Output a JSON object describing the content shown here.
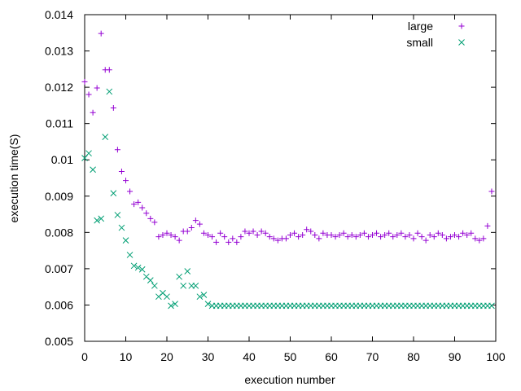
{
  "chart_data": {
    "type": "scatter",
    "xlabel": "execution number",
    "ylabel": "execution time(S)",
    "xlim": [
      0,
      100
    ],
    "ylim": [
      0.005,
      0.014
    ],
    "xticks": [
      0,
      10,
      20,
      30,
      40,
      50,
      60,
      70,
      80,
      90,
      100
    ],
    "yticks": [
      0.005,
      0.006,
      0.007,
      0.008,
      0.009,
      0.01,
      0.011,
      0.012,
      0.013,
      0.014
    ],
    "xtick_labels": [
      "0",
      "10",
      "20",
      "30",
      "40",
      "50",
      "60",
      "70",
      "80",
      "90",
      "100"
    ],
    "ytick_labels": [
      "0.005",
      "0.006",
      "0.007",
      "0.008",
      "0.009",
      "0.01",
      "0.011",
      "0.012",
      "0.013",
      "0.014"
    ],
    "grid": false,
    "legend_position": "top-right",
    "series": [
      {
        "name": "large",
        "marker": "plus",
        "color": "#9400d3",
        "x": [
          0,
          1,
          2,
          3,
          4,
          5,
          6,
          7,
          8,
          9,
          10,
          11,
          12,
          13,
          14,
          15,
          16,
          17,
          18,
          19,
          20,
          21,
          22,
          23,
          24,
          25,
          26,
          27,
          28,
          29,
          30,
          31,
          32,
          33,
          34,
          35,
          36,
          37,
          38,
          39,
          40,
          41,
          42,
          43,
          44,
          45,
          46,
          47,
          48,
          49,
          50,
          51,
          52,
          53,
          54,
          55,
          56,
          57,
          58,
          59,
          60,
          61,
          62,
          63,
          64,
          65,
          66,
          67,
          68,
          69,
          70,
          71,
          72,
          73,
          74,
          75,
          76,
          77,
          78,
          79,
          80,
          81,
          82,
          83,
          84,
          85,
          86,
          87,
          88,
          89,
          90,
          91,
          92,
          93,
          94,
          95,
          96,
          97,
          98,
          99
        ],
        "y": [
          0.01215,
          0.0118,
          0.0113,
          0.01198,
          0.01348,
          0.01248,
          0.01248,
          0.01143,
          0.01028,
          0.00968,
          0.00943,
          0.00913,
          0.00878,
          0.00883,
          0.00868,
          0.00853,
          0.00838,
          0.00828,
          0.00788,
          0.00793,
          0.00798,
          0.00793,
          0.00788,
          0.00778,
          0.00803,
          0.00803,
          0.00813,
          0.00833,
          0.00823,
          0.00798,
          0.00793,
          0.00788,
          0.00773,
          0.00798,
          0.00788,
          0.00773,
          0.00783,
          0.00773,
          0.00788,
          0.00803,
          0.00798,
          0.00803,
          0.00793,
          0.00803,
          0.00798,
          0.00788,
          0.00783,
          0.00778,
          0.00783,
          0.00783,
          0.00793,
          0.00798,
          0.00788,
          0.00793,
          0.00808,
          0.00803,
          0.00793,
          0.00783,
          0.00798,
          0.00793,
          0.00793,
          0.00788,
          0.00793,
          0.00798,
          0.00788,
          0.00793,
          0.00788,
          0.00793,
          0.00798,
          0.00788,
          0.00793,
          0.00798,
          0.00788,
          0.00793,
          0.00798,
          0.00788,
          0.00793,
          0.00798,
          0.00788,
          0.00793,
          0.00783,
          0.00798,
          0.00788,
          0.00778,
          0.00793,
          0.00788,
          0.00798,
          0.00793,
          0.00783,
          0.00788,
          0.00793,
          0.00788,
          0.00798,
          0.00793,
          0.00798,
          0.00783,
          0.00778,
          0.00783,
          0.00818,
          0.00913
        ]
      },
      {
        "name": "small",
        "marker": "cross",
        "color": "#009e73",
        "x": [
          0,
          1,
          2,
          3,
          4,
          5,
          6,
          7,
          8,
          9,
          10,
          11,
          12,
          13,
          14,
          15,
          16,
          17,
          18,
          19,
          20,
          21,
          22,
          23,
          24,
          25,
          26,
          27,
          28,
          29,
          30,
          31,
          32,
          33,
          34,
          35,
          36,
          37,
          38,
          39,
          40,
          41,
          42,
          43,
          44,
          45,
          46,
          47,
          48,
          49,
          50,
          51,
          52,
          53,
          54,
          55,
          56,
          57,
          58,
          59,
          60,
          61,
          62,
          63,
          64,
          65,
          66,
          67,
          68,
          69,
          70,
          71,
          72,
          73,
          74,
          75,
          76,
          77,
          78,
          79,
          80,
          81,
          82,
          83,
          84,
          85,
          86,
          87,
          88,
          89,
          90,
          91,
          92,
          93,
          94,
          95,
          96,
          97,
          98,
          99
        ],
        "y": [
          0.01005,
          0.01018,
          0.00973,
          0.00833,
          0.00838,
          0.01063,
          0.01188,
          0.00908,
          0.00848,
          0.00813,
          0.00778,
          0.00738,
          0.00708,
          0.00703,
          0.00698,
          0.00678,
          0.00668,
          0.00653,
          0.00623,
          0.00633,
          0.00623,
          0.00598,
          0.00603,
          0.00678,
          0.00653,
          0.00693,
          0.00653,
          0.00653,
          0.00623,
          0.00628,
          0.00603,
          0.00598,
          0.00598,
          0.00598,
          0.00598,
          0.00598,
          0.00598,
          0.00598,
          0.00598,
          0.00598,
          0.00598,
          0.00598,
          0.00598,
          0.00598,
          0.00598,
          0.00598,
          0.00598,
          0.00598,
          0.00598,
          0.00598,
          0.00598,
          0.00598,
          0.00598,
          0.00598,
          0.00598,
          0.00598,
          0.00598,
          0.00598,
          0.00598,
          0.00598,
          0.00598,
          0.00598,
          0.00598,
          0.00598,
          0.00598,
          0.00598,
          0.00598,
          0.00598,
          0.00598,
          0.00598,
          0.00598,
          0.00598,
          0.00598,
          0.00598,
          0.00598,
          0.00598,
          0.00598,
          0.00598,
          0.00598,
          0.00598,
          0.00598,
          0.00598,
          0.00598,
          0.00598,
          0.00598,
          0.00598,
          0.00598,
          0.00598,
          0.00598,
          0.00598,
          0.00598,
          0.00598,
          0.00598,
          0.00598,
          0.00598,
          0.00598,
          0.00598,
          0.00598,
          0.00598,
          0.00598
        ]
      }
    ]
  }
}
